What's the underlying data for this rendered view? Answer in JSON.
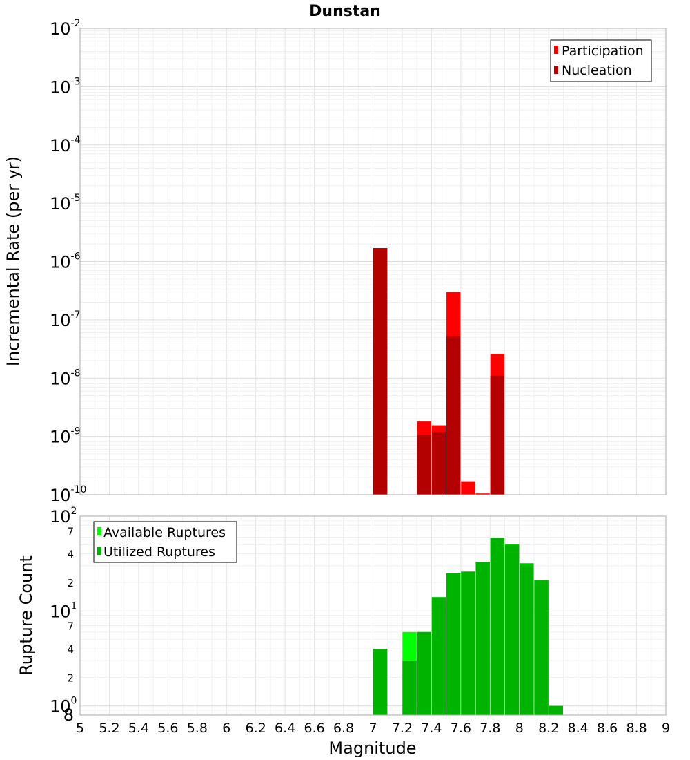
{
  "chart_data": [
    {
      "type": "bar",
      "title": "Dunstan",
      "xlabel": "",
      "ylabel": "Incremental Rate (per yr)",
      "yscale": "log",
      "xlim": [
        5,
        9
      ],
      "ylim": [
        1e-10,
        0.01
      ],
      "y_decades": [
        {
          "base": "10",
          "exp": "-10",
          "value": 1e-10
        },
        {
          "base": "10",
          "exp": "-9",
          "value": 1e-09
        },
        {
          "base": "10",
          "exp": "-8",
          "value": 1e-08
        },
        {
          "base": "10",
          "exp": "-7",
          "value": 1e-07
        },
        {
          "base": "10",
          "exp": "-6",
          "value": 1e-06
        },
        {
          "base": "10",
          "exp": "-5",
          "value": 1e-05
        },
        {
          "base": "10",
          "exp": "-4",
          "value": 0.0001
        },
        {
          "base": "10",
          "exp": "-3",
          "value": 0.001
        },
        {
          "base": "10",
          "exp": "-2",
          "value": 0.01
        }
      ],
      "grid": true,
      "legend_position": "top-right",
      "series": [
        {
          "name": "Participation",
          "color": "#ff0000",
          "x": [
            7.05,
            7.35,
            7.45,
            7.55,
            7.65,
            7.75,
            7.85
          ],
          "values": [
            1.7e-06,
            1.8e-09,
            1.55e-09,
            3e-07,
            1.7e-10,
            1.05e-10,
            2.6e-08
          ]
        },
        {
          "name": "Nucleation",
          "color": "#b30000",
          "x": [
            7.05,
            7.35,
            7.45,
            7.55,
            7.85
          ],
          "values": [
            1.7e-06,
            1.05e-09,
            1.2e-09,
            5.2e-08,
            1.1e-08
          ]
        }
      ]
    },
    {
      "type": "bar",
      "title": "",
      "xlabel": "Magnitude",
      "ylabel": "Rupture Count",
      "yscale": "log",
      "xlim": [
        5,
        9
      ],
      "ylim": [
        0.8,
        100
      ],
      "x_ticks": [
        "5",
        "5.2",
        "5.4",
        "5.6",
        "5.8",
        "6",
        "6.2",
        "6.4",
        "6.6",
        "6.8",
        "7",
        "7.2",
        "7.4",
        "7.6",
        "7.8",
        "8",
        "8.2",
        "8.4",
        "8.6",
        "8.8",
        "9"
      ],
      "y_decades": [
        {
          "base": "10",
          "exp": "0",
          "value": 1
        },
        {
          "base": "10",
          "exp": "1",
          "value": 10
        },
        {
          "base": "10",
          "exp": "2",
          "value": 100
        }
      ],
      "y_minor_labels": [
        {
          "label": "8",
          "value": 0.8
        },
        {
          "label": "2",
          "value": 2
        },
        {
          "label": "4",
          "value": 4
        },
        {
          "label": "7",
          "value": 7
        },
        {
          "label": "2",
          "value": 20
        },
        {
          "label": "4",
          "value": 40
        },
        {
          "label": "7",
          "value": 70
        }
      ],
      "grid": true,
      "legend_position": "top-left",
      "series": [
        {
          "name": "Available Ruptures",
          "color": "#00ff00",
          "x": [
            7.05,
            7.25,
            7.35,
            7.45,
            7.55,
            7.65,
            7.75,
            7.85,
            7.95,
            8.05,
            8.15,
            8.25
          ],
          "values": [
            4,
            6,
            6,
            14,
            25,
            26,
            33,
            59,
            51,
            32,
            21,
            1
          ]
        },
        {
          "name": "Utilized Ruptures",
          "color": "#00b300",
          "x": [
            7.05,
            7.25,
            7.35,
            7.45,
            7.55,
            7.65,
            7.75,
            7.85,
            7.95,
            8.05,
            8.15,
            8.25
          ],
          "values": [
            4,
            3,
            6,
            14,
            25,
            26,
            33,
            59,
            50,
            31,
            21,
            1
          ]
        }
      ]
    }
  ]
}
